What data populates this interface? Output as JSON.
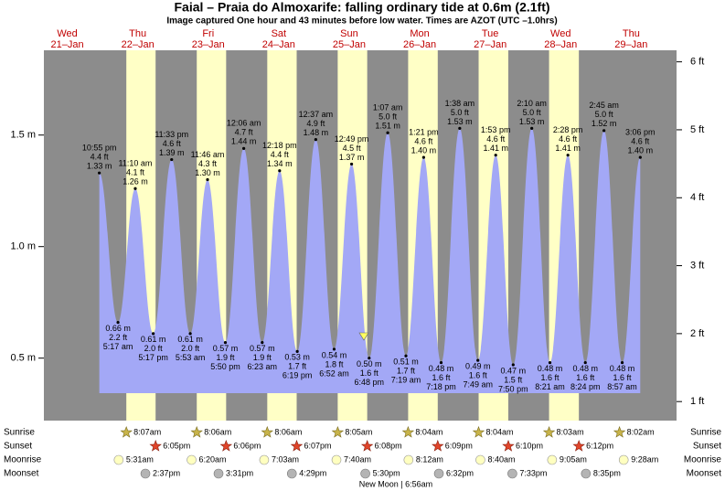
{
  "chart_data": {
    "type": "tide",
    "title": "Faial – Praia do Almoxarife: falling  ordinary tide at 0.6m (2.1ft)",
    "subtitle": "Image captured One hour and 43 minutes before low water. Times are AZOT (UTC –1.0hrs)",
    "days": [
      {
        "weekday": "Wed",
        "date": "21–Jan"
      },
      {
        "weekday": "Thu",
        "date": "22–Jan"
      },
      {
        "weekday": "Fri",
        "date": "23–Jan"
      },
      {
        "weekday": "Sat",
        "date": "24–Jan"
      },
      {
        "weekday": "Sun",
        "date": "25–Jan"
      },
      {
        "weekday": "Mon",
        "date": "26–Jan"
      },
      {
        "weekday": "Tue",
        "date": "27–Jan"
      },
      {
        "weekday": "Wed",
        "date": "28–Jan"
      },
      {
        "weekday": "Thu",
        "date": "29–Jan"
      }
    ],
    "times": [
      "10:55 pm",
      "5:17 am",
      "11:10 am",
      "5:17 pm",
      "11:33 pm",
      "5:53 am",
      "11:46 am",
      "5:50 pm",
      "12:06 am",
      "6:23 am",
      "12:18 pm",
      "6:19 pm",
      "12:37 am",
      "6:52 am",
      "12:49 pm",
      "6:48 pm",
      "1:07 am",
      "7:19 am",
      "1:21 pm",
      "7:18 pm",
      "1:38 am",
      "7:49 am",
      "1:53 pm",
      "7:50 pm",
      "2:10 am",
      "8:21 am",
      "2:28 pm",
      "8:24 pm",
      "2:45 am",
      "8:57 am",
      "3:06 pm"
    ],
    "values": [
      1.33,
      0.66,
      1.26,
      0.61,
      1.39,
      0.61,
      1.3,
      0.57,
      1.44,
      0.57,
      1.34,
      0.53,
      1.48,
      0.54,
      1.37,
      0.5,
      1.51,
      0.51,
      1.4,
      0.48,
      1.53,
      0.49,
      1.41,
      0.47,
      1.53,
      0.48,
      1.41,
      0.48,
      1.52,
      0.48,
      1.4
    ],
    "value_labels": [
      "1.33 m",
      "0.66 m",
      "1.26 m",
      "0.61 m",
      "1.39 m",
      "0.61 m",
      "1.30 m",
      "0.57 m",
      "1.44 m",
      "0.57 m",
      "1.34 m",
      "0.53 m",
      "1.48 m",
      "0.54 m",
      "1.37 m",
      "0.50 m",
      "1.51 m",
      "0.51 m",
      "1.40 m",
      "0.48 m",
      "1.53 m",
      "0.49 m",
      "1.41 m",
      "0.47 m",
      "1.53 m",
      "0.48 m",
      "1.41 m",
      "0.48 m",
      "1.52 m",
      "0.48 m",
      "1.40 m"
    ],
    "ft_labels": [
      "4.4 ft",
      "2.2 ft",
      "4.1 ft",
      "2.0 ft",
      "4.6 ft",
      "2.0 ft",
      "4.3 ft",
      "1.9 ft",
      "4.7 ft",
      "1.9 ft",
      "4.4 ft",
      "1.7 ft",
      "4.9 ft",
      "1.8 ft",
      "4.5 ft",
      "1.6 ft",
      "5.0 ft",
      "1.7 ft",
      "4.6 ft",
      "1.6 ft",
      "5.0 ft",
      "1.6 ft",
      "4.6 ft",
      "1.5 ft",
      "5.0 ft",
      "1.6 ft",
      "4.6 ft",
      "1.6 ft",
      "5.0 ft",
      "1.6 ft",
      "4.6 ft"
    ],
    "color": "#a3a8f6",
    "ylim": [
      0.22,
      1.88
    ],
    "yticks": [
      {
        "value": 0.5,
        "label": "0.5 m"
      },
      {
        "value": 1.0,
        "label": "1.0 m"
      },
      {
        "value": 1.5,
        "label": "1.5 m"
      }
    ],
    "y2lim": [
      0.72,
      6.17
    ],
    "y2ticks": [
      {
        "value": 1,
        "label": "1 ft"
      },
      {
        "value": 2,
        "label": "2 ft"
      },
      {
        "value": 3,
        "label": "3 ft"
      },
      {
        "value": 4,
        "label": "4 ft"
      },
      {
        "value": 5,
        "label": "5 ft"
      },
      {
        "value": 6,
        "label": "6 ft"
      }
    ],
    "rows": [
      {
        "name": "Sunrise",
        "times": [
          null,
          "8:07am",
          "8:06am",
          "8:06am",
          "8:05am",
          "8:04am",
          "8:04am",
          "8:03am",
          "8:02am"
        ]
      },
      {
        "name": "Sunset",
        "times": [
          null,
          "6:05pm",
          "6:06pm",
          "6:07pm",
          "6:08pm",
          "6:09pm",
          "6:10pm",
          "6:12pm",
          null
        ]
      },
      {
        "name": "Moonrise",
        "times": [
          null,
          "5:31am",
          "6:20am",
          "7:03am",
          "7:40am",
          "8:12am",
          "8:40am",
          "9:05am",
          "9:28am"
        ]
      },
      {
        "name": "Moonset",
        "times": [
          null,
          "2:37pm",
          "3:31pm",
          "4:29pm",
          "5:30pm",
          "6:32pm",
          "7:33pm",
          "8:35pm",
          null
        ]
      }
    ],
    "moon_phase": "New Moon | 6:56am"
  }
}
